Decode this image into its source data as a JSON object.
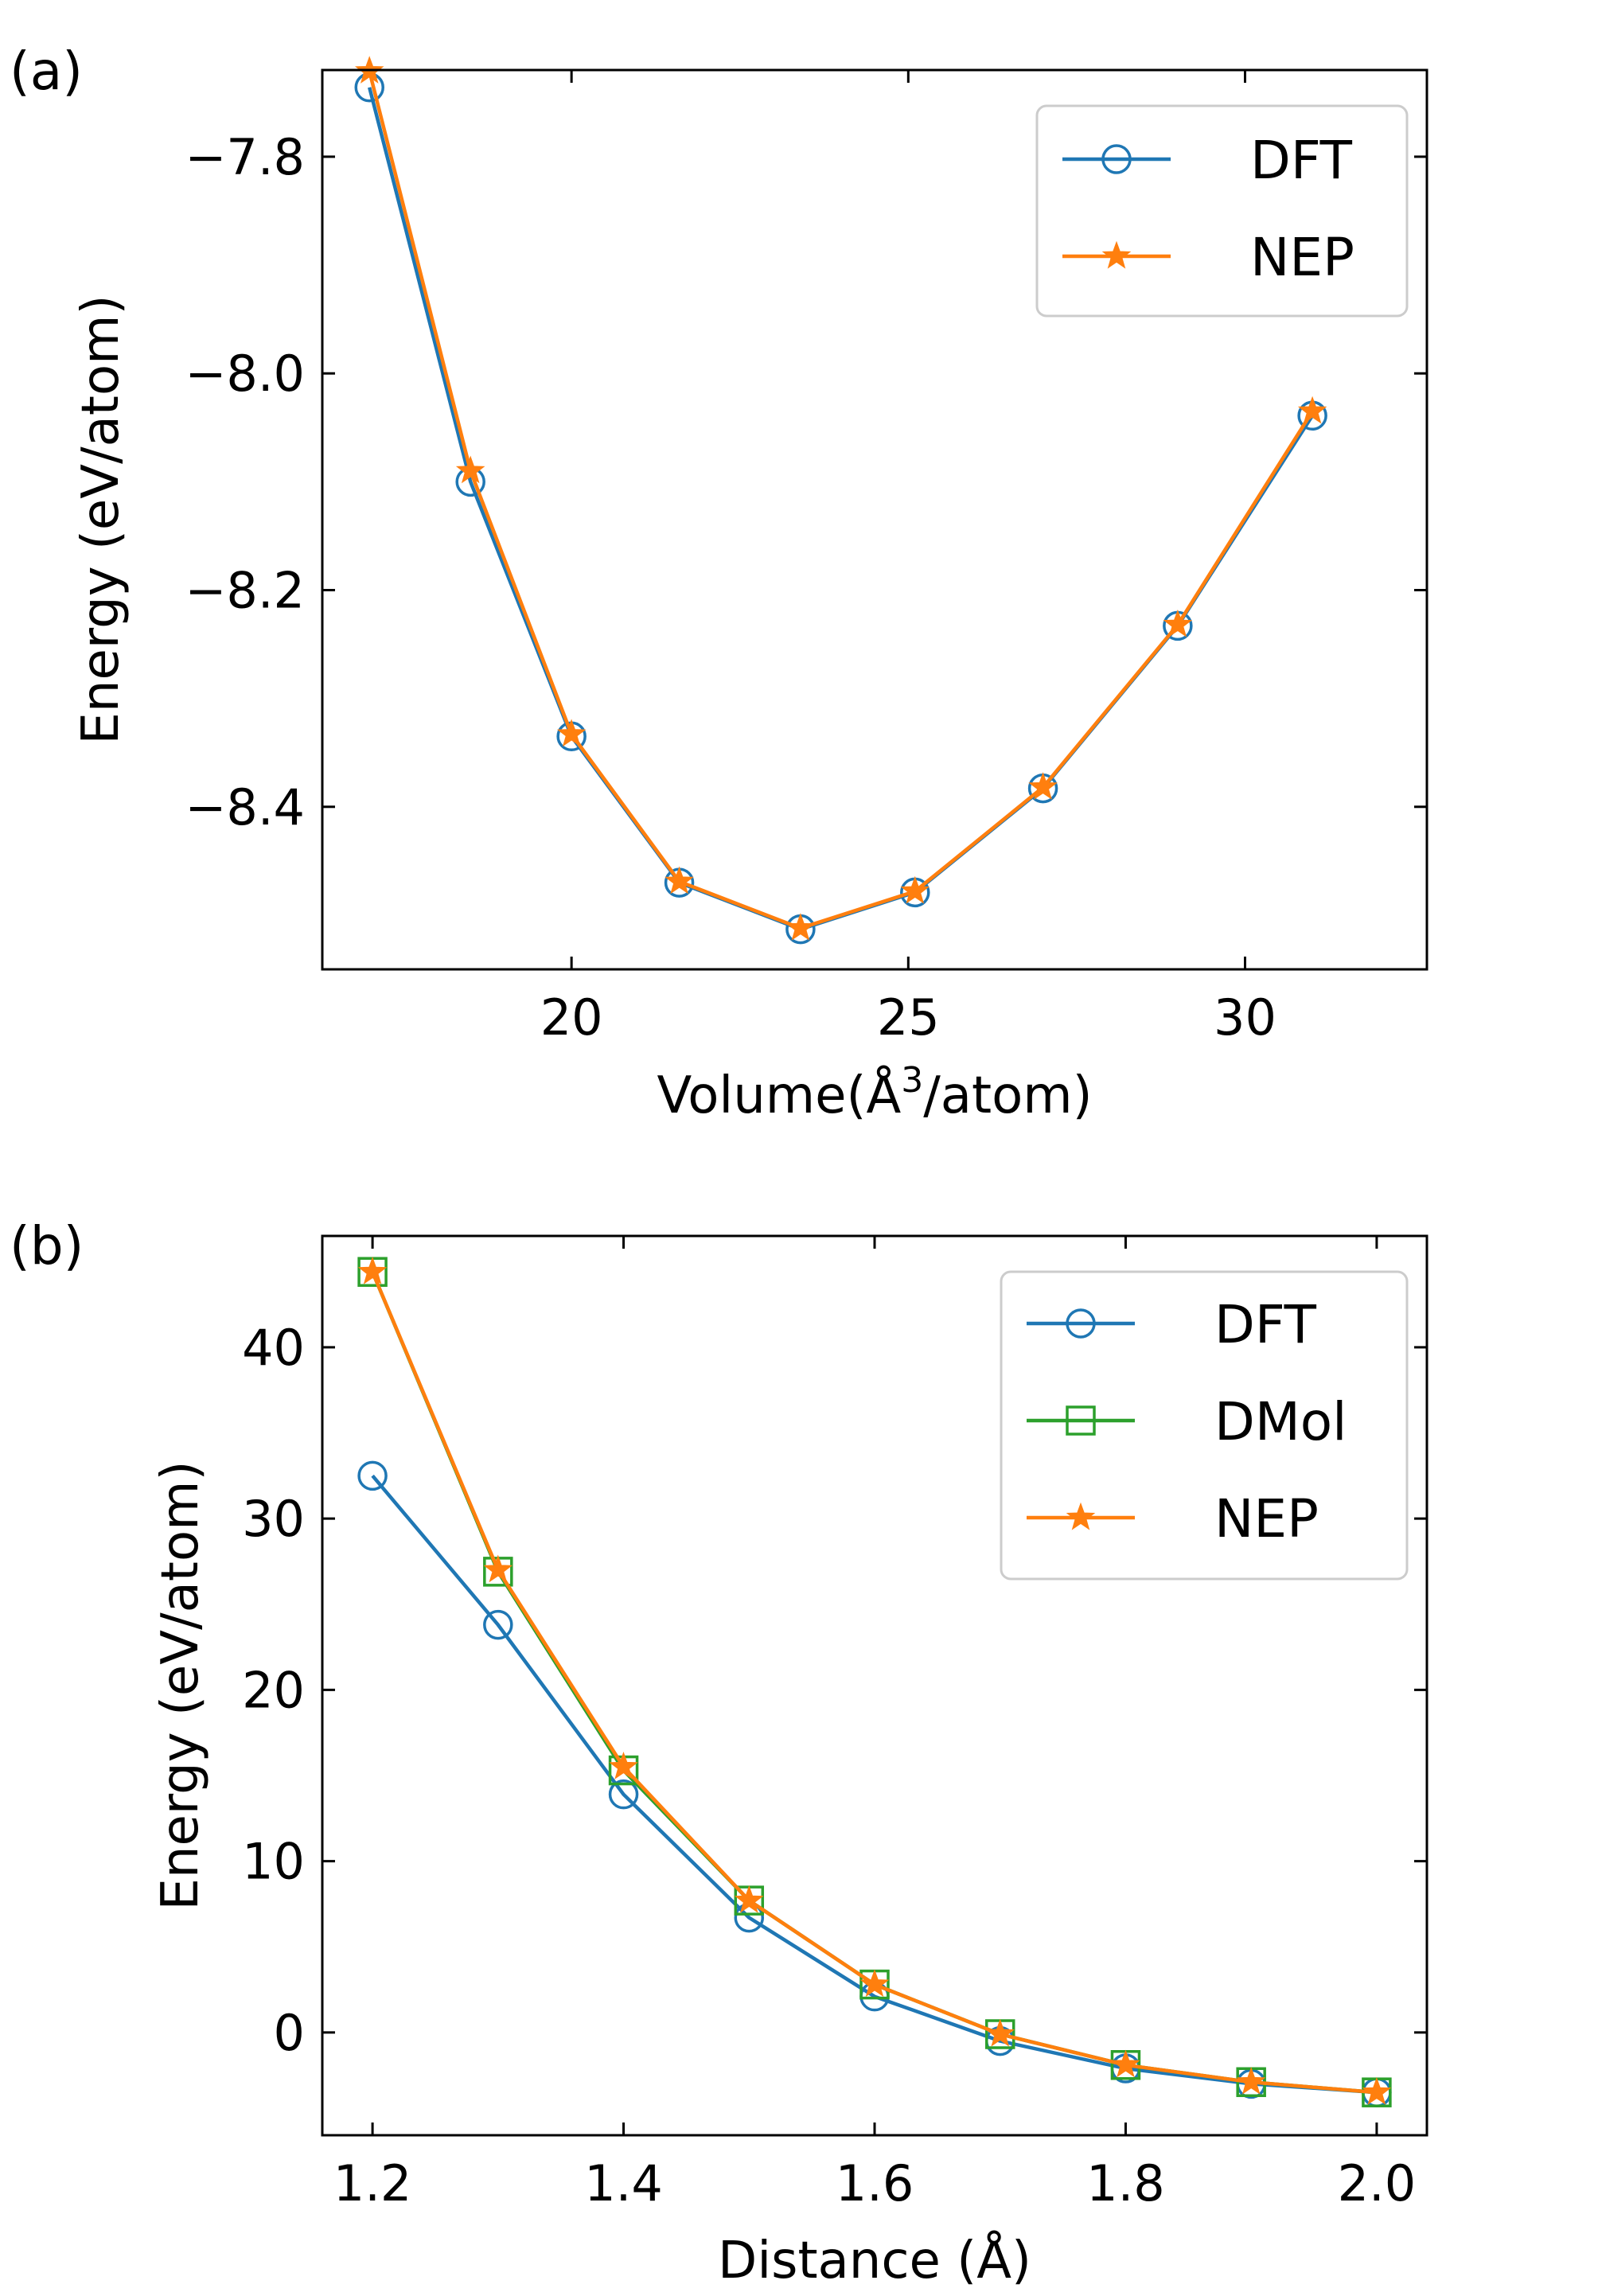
{
  "colors": {
    "DFT": "#1f77b4",
    "NEP": "#ff7f0e",
    "DMol": "#2ca02c"
  },
  "chart_data": [
    {
      "type": "line",
      "panel_label": "(a)",
      "xlabel": "Volume(Å",
      "xlabel_sup": "3",
      "xlabel_tail": "/atom)",
      "ylabel": "Energy (eV/atom)",
      "xlim": [
        16.3,
        32.7
      ],
      "ylim": [
        -8.55,
        -7.72
      ],
      "xticks": [
        20,
        25,
        30
      ],
      "xtick_labels": [
        "20",
        "25",
        "30"
      ],
      "yticks": [
        -7.8,
        -8.0,
        -8.2,
        -8.4
      ],
      "ytick_labels": [
        "−7.8",
        "−8.0",
        "−8.2",
        "−8.4"
      ],
      "legend_position": "top-right",
      "series": [
        {
          "name": "DFT",
          "marker": "circle",
          "x": [
            17.0,
            18.5,
            20.0,
            21.6,
            23.4,
            25.1,
            27.0,
            29.0,
            31.0
          ],
          "y": [
            -7.736,
            -8.1,
            -8.335,
            -8.47,
            -8.513,
            -8.479,
            -8.383,
            -8.233,
            -8.039
          ]
        },
        {
          "name": "NEP",
          "marker": "star",
          "x": [
            17.0,
            18.5,
            20.0,
            21.6,
            23.4,
            25.1,
            27.0,
            29.0,
            31.0
          ],
          "y": [
            -7.721,
            -8.09,
            -8.333,
            -8.469,
            -8.512,
            -8.478,
            -8.382,
            -8.232,
            -8.035
          ]
        }
      ]
    },
    {
      "type": "line",
      "panel_label": "(b)",
      "xlabel": "Distance (Å)",
      "ylabel": "Energy (eV/atom)",
      "xlim": [
        1.16,
        2.04
      ],
      "ylim": [
        -6.0,
        46.5
      ],
      "xticks": [
        1.2,
        1.4,
        1.6,
        1.8,
        2.0
      ],
      "xtick_labels": [
        "1.2",
        "1.4",
        "1.6",
        "1.8",
        "2.0"
      ],
      "yticks": [
        0,
        10,
        20,
        30,
        40
      ],
      "ytick_labels": [
        "0",
        "10",
        "20",
        "30",
        "40"
      ],
      "legend_position": "top-right",
      "series": [
        {
          "name": "DFT",
          "marker": "circle",
          "x": [
            1.2,
            1.3,
            1.4,
            1.5,
            1.6,
            1.7,
            1.8,
            1.9,
            2.0
          ],
          "y": [
            32.5,
            23.8,
            13.9,
            6.7,
            2.1,
            -0.5,
            -2.1,
            -3.0,
            -3.5
          ]
        },
        {
          "name": "DMol",
          "marker": "square",
          "x": [
            1.2,
            1.3,
            1.4,
            1.5,
            1.6,
            1.7,
            1.8,
            1.9,
            2.0
          ],
          "y": [
            44.4,
            26.9,
            15.3,
            7.7,
            2.8,
            -0.1,
            -1.9,
            -2.9,
            -3.5
          ]
        },
        {
          "name": "NEP",
          "marker": "star",
          "x": [
            1.2,
            1.3,
            1.4,
            1.5,
            1.6,
            1.7,
            1.8,
            1.9,
            2.0
          ],
          "y": [
            44.4,
            27.0,
            15.5,
            7.7,
            2.8,
            -0.1,
            -1.9,
            -2.9,
            -3.5
          ]
        }
      ]
    }
  ]
}
